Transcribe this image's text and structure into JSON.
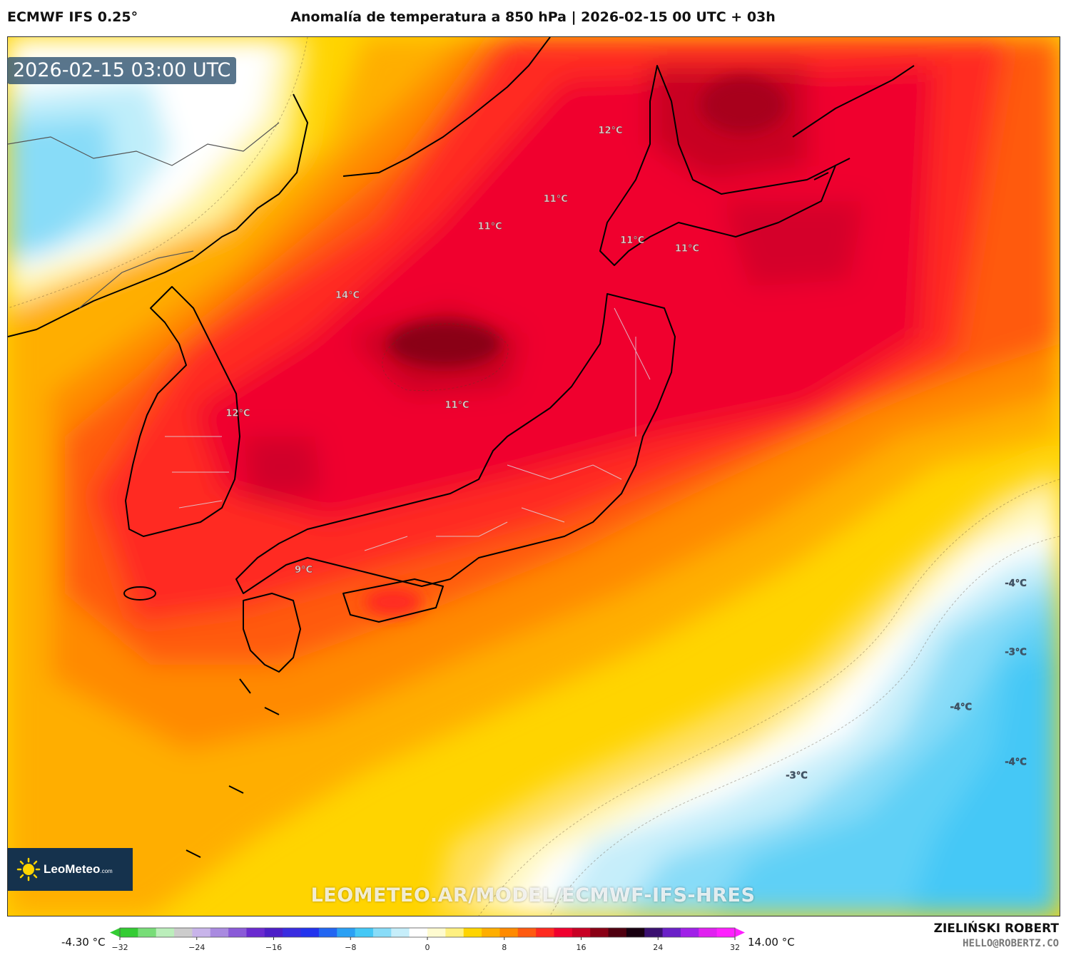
{
  "header": {
    "model": "ECMWF IFS 0.25°",
    "title": "Anomalía de temperatura a 850 hPa | 2026-02-15 00 UTC + 03h"
  },
  "valid_time": "2026-02-15 03:00 UTC",
  "watermark_url": "LEOMETEO.AR/MODEL/ECMWF-IFS-HRES",
  "logo": {
    "brand": "LeoMeteo",
    "suffix": ".com",
    "icon": "sun-icon"
  },
  "author": {
    "name": "ZIELIŃSKI ROBERT",
    "email": "HELLO@ROBERTZ.CO"
  },
  "colorbar": {
    "min_label": "-4.30 °C",
    "max_label": "14.00 °C",
    "ticks": [
      "−32",
      "−24",
      "−16",
      "−8",
      "0",
      "8",
      "16",
      "24",
      "32"
    ],
    "range": [
      -32,
      32
    ],
    "colors": [
      "#33cc33",
      "#77dd77",
      "#bbeebb",
      "#cccccc",
      "#c8b4ea",
      "#a98ae0",
      "#8a5ad8",
      "#6a2ad0",
      "#4d1ec8",
      "#3a2ce0",
      "#2233ee",
      "#2266f2",
      "#2aa0f4",
      "#44c8f6",
      "#88dcf8",
      "#c6eefa",
      "#ffffff",
      "#fffbd0",
      "#fff080",
      "#ffd400",
      "#ffae00",
      "#ff8a00",
      "#ff5a10",
      "#ff2a20",
      "#f0002e",
      "#c80024",
      "#8a0015",
      "#500010",
      "#180010",
      "#3a1070",
      "#6a20c8",
      "#a020e8",
      "#e020f0",
      "#ff20ff"
    ]
  },
  "map_labels": [
    {
      "text": "12°C",
      "lon": 145.5,
      "lat": 46.5
    },
    {
      "text": "11°C",
      "lon": 143.0,
      "lat": 44.0
    },
    {
      "text": "11°C",
      "lon": 140.0,
      "lat": 43.0
    },
    {
      "text": "11°C",
      "lon": 146.5,
      "lat": 42.5
    },
    {
      "text": "11°C",
      "lon": 149.0,
      "lat": 42.2
    },
    {
      "text": "14°C",
      "lon": 133.5,
      "lat": 40.5
    },
    {
      "text": "12°C",
      "lon": 128.5,
      "lat": 36.2
    },
    {
      "text": "11°C",
      "lon": 138.5,
      "lat": 36.5
    },
    {
      "text": "9°C",
      "lon": 131.5,
      "lat": 30.5
    },
    {
      "text": "-4°C",
      "lon": 164.0,
      "lat": 30.0
    },
    {
      "text": "-3°C",
      "lon": 164.0,
      "lat": 27.5
    },
    {
      "text": "-4°C",
      "lon": 161.5,
      "lat": 25.5
    },
    {
      "text": "-3°C",
      "lon": 154.0,
      "lat": 23.0
    },
    {
      "text": "-4°C",
      "lon": 164.0,
      "lat": 23.5
    }
  ]
}
